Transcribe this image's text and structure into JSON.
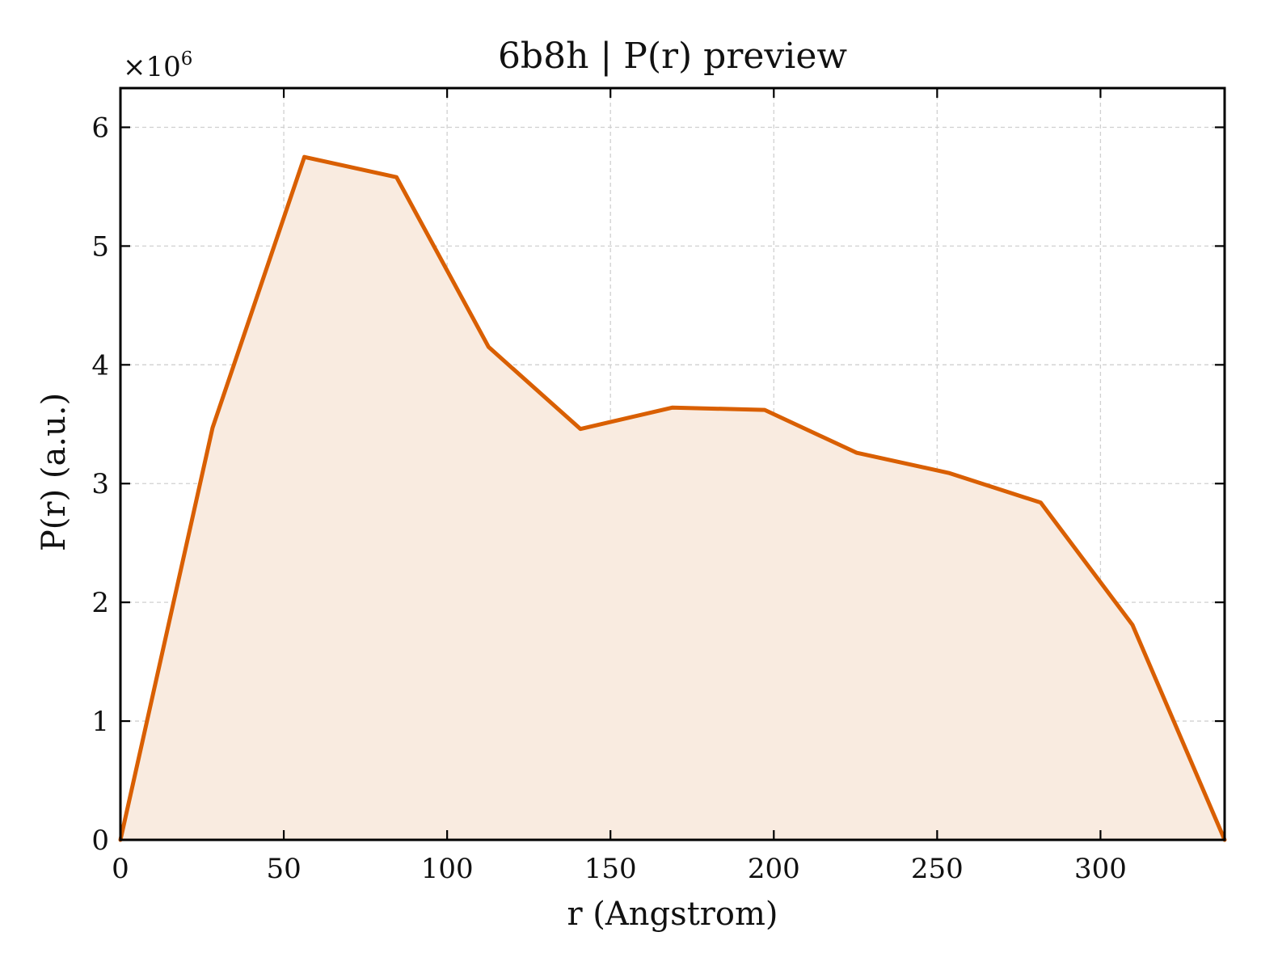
{
  "chart_data": {
    "type": "area",
    "title": "6b8h | P(r) preview",
    "xlabel": "r (Angstrom)",
    "ylabel": "P(r) (a.u.)",
    "y_offset_label": {
      "base": "×10",
      "exponent": "6"
    },
    "xlim": [
      0,
      338
    ],
    "ylim": [
      0,
      6.33
    ],
    "grid": true,
    "x_ticks": [
      0,
      50,
      100,
      150,
      200,
      250,
      300
    ],
    "x_tick_labels": [
      "0",
      "50",
      "100",
      "150",
      "200",
      "250",
      "300"
    ],
    "y_ticks": [
      0,
      1,
      2,
      3,
      4,
      5,
      6
    ],
    "y_tick_labels": [
      "0",
      "1",
      "2",
      "3",
      "4",
      "5",
      "6"
    ],
    "series": [
      {
        "x": [
          0,
          28.2,
          56.3,
          84.5,
          112.7,
          140.8,
          169.0,
          197.2,
          225.3,
          253.5,
          281.7,
          309.8,
          338.0
        ],
        "values": [
          0,
          3.47,
          5.75,
          5.58,
          4.15,
          3.46,
          3.64,
          3.62,
          3.26,
          3.09,
          2.84,
          1.81,
          0
        ]
      }
    ],
    "colors": {
      "line": "#d95f02",
      "fill": "#f9ebe0",
      "grid": "#d0d0d0",
      "axis": "#000000"
    }
  }
}
